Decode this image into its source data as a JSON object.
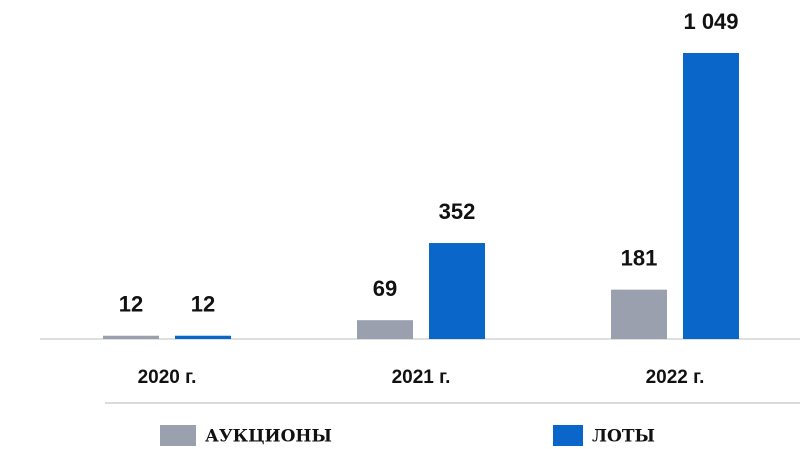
{
  "chart_data": {
    "type": "bar",
    "categories": [
      "2020 г.",
      "2021 г.",
      "2022 г."
    ],
    "series": [
      {
        "name": "АУКЦИОНЫ",
        "color": "#9aa0ad",
        "values": [
          12,
          69,
          181
        ]
      },
      {
        "name": "ЛОТЫ",
        "color": "#0a66c8",
        "values": [
          12,
          352,
          1049
        ],
        "value_labels": [
          "12",
          "352",
          "1 049"
        ]
      }
    ]
  }
}
